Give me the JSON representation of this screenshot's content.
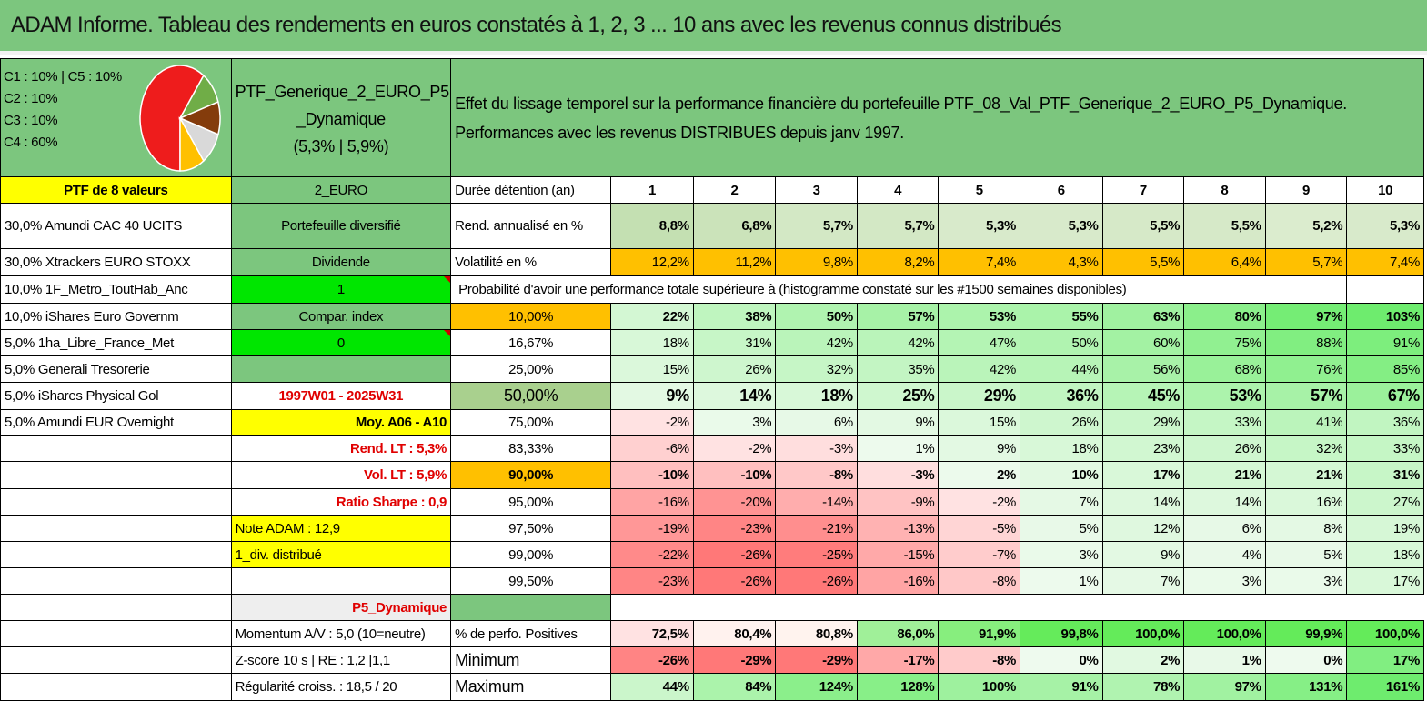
{
  "title": "ADAM Informe. Tableau des rendements en euros constatés à 1, 2, 3 ... 10 ans avec les revenus connus distribués",
  "pie": {
    "legend": [
      "C1 : 10% | C5 : 10%",
      "C2 : 10%",
      "C3 : 10%",
      "C4 : 60%"
    ],
    "slices": [
      {
        "value": 60,
        "color": "#ee1c1c"
      },
      {
        "value": 10,
        "color": "#70ad47"
      },
      {
        "value": 10,
        "color": "#843c0c"
      },
      {
        "value": 10,
        "color": "#d9d9d9"
      },
      {
        "value": 10,
        "color": "#ffc000"
      }
    ]
  },
  "portfolio": {
    "name_line1": "PTF_Generique_2_EURO_P5",
    "name_line2": "_Dynamique",
    "name_line3": "(5,3% | 5,9%)"
  },
  "description": {
    "line1": "Effet du lissage temporel sur la performance financière du portefeuille PTF_08_Val_PTF_Generique_2_EURO_P5_Dynamique.",
    "line2": "Performances avec les revenus DISTRIBUES depuis janv 1997."
  },
  "ptf_label": "PTF de 8 valeurs",
  "currency": "2_EURO",
  "holdings": [
    "30,0% Amundi CAC 40 UCITS",
    "30,0% Xtrackers EURO STOXX",
    "10,0% 1F_Metro_ToutHab_Anc",
    "10,0% iShares Euro Governm",
    "5,0% 1ha_Libre_France_Met",
    "5,0% Generali Tresorerie",
    "5,0% iShares Physical Gol",
    "5,0% Amundi EUR Overnight"
  ],
  "col2": {
    "diversified": "Portefeuille diversifié",
    "dividend": "Dividende",
    "dividend_value": "1",
    "compar_index": "Compar. index",
    "compar_value": "0",
    "period": "1997W01 - 2025W31",
    "moy": "Moy. A06 - A10",
    "rend_lt": "Rend. LT : 5,3%",
    "vol_lt": "Vol. LT : 5,9%",
    "sharpe": "Ratio Sharpe : 0,9",
    "note": "Note ADAM : 12,9",
    "div_distrib": "1_div. distribué",
    "profile": "P5_Dynamique",
    "momentum": "Momentum A/V : 5,0 (10=neutre)",
    "zscore": "Z-score 10 s | RE : 1,2 |1,1",
    "regularite": "Régularité croiss. : 18,5 / 20"
  },
  "labels": {
    "duree": "Durée détention (an)",
    "rend": "Rend. annualisé en %",
    "vol": "Volatilité en %",
    "proba": "Probabilité d'avoir une performance totale supérieure à (histogramme constaté sur les #1500 semaines disponibles)",
    "positives": "% de perfo. Positives",
    "minimum": "Minimum",
    "maximum": "Maximum"
  },
  "years": [
    "1",
    "2",
    "3",
    "4",
    "5",
    "6",
    "7",
    "8",
    "9",
    "10"
  ],
  "rend": [
    "8,8%",
    "6,8%",
    "5,7%",
    "5,7%",
    "5,3%",
    "5,3%",
    "5,5%",
    "5,5%",
    "5,2%",
    "5,3%"
  ],
  "vol": [
    "12,2%",
    "11,2%",
    "9,8%",
    "8,2%",
    "7,4%",
    "4,3%",
    "5,5%",
    "6,4%",
    "5,7%",
    "7,4%"
  ],
  "prob_rows": [
    {
      "threshold": "10,00%",
      "values": [
        "22%",
        "38%",
        "50%",
        "57%",
        "53%",
        "55%",
        "63%",
        "80%",
        "97%",
        "103%"
      ]
    },
    {
      "threshold": "16,67%",
      "values": [
        "18%",
        "31%",
        "42%",
        "42%",
        "47%",
        "50%",
        "60%",
        "75%",
        "88%",
        "91%"
      ]
    },
    {
      "threshold": "25,00%",
      "values": [
        "15%",
        "26%",
        "32%",
        "35%",
        "42%",
        "44%",
        "56%",
        "68%",
        "76%",
        "85%"
      ]
    },
    {
      "threshold": "50,00%",
      "values": [
        "9%",
        "14%",
        "18%",
        "25%",
        "29%",
        "36%",
        "45%",
        "53%",
        "57%",
        "67%"
      ]
    },
    {
      "threshold": "75,00%",
      "values": [
        "-2%",
        "3%",
        "6%",
        "9%",
        "15%",
        "26%",
        "29%",
        "33%",
        "41%",
        "36%"
      ]
    },
    {
      "threshold": "83,33%",
      "values": [
        "-6%",
        "-2%",
        "-3%",
        "1%",
        "9%",
        "18%",
        "23%",
        "26%",
        "32%",
        "33%"
      ]
    },
    {
      "threshold": "90,00%",
      "values": [
        "-10%",
        "-10%",
        "-8%",
        "-3%",
        "2%",
        "10%",
        "17%",
        "21%",
        "21%",
        "31%"
      ]
    },
    {
      "threshold": "95,00%",
      "values": [
        "-16%",
        "-20%",
        "-14%",
        "-9%",
        "-2%",
        "7%",
        "14%",
        "14%",
        "16%",
        "27%"
      ]
    },
    {
      "threshold": "97,50%",
      "values": [
        "-19%",
        "-23%",
        "-21%",
        "-13%",
        "-5%",
        "5%",
        "12%",
        "6%",
        "8%",
        "19%"
      ]
    },
    {
      "threshold": "99,00%",
      "values": [
        "-22%",
        "-26%",
        "-25%",
        "-15%",
        "-7%",
        "3%",
        "9%",
        "4%",
        "5%",
        "18%"
      ]
    },
    {
      "threshold": "99,50%",
      "values": [
        "-23%",
        "-26%",
        "-26%",
        "-16%",
        "-8%",
        "1%",
        "7%",
        "3%",
        "3%",
        "17%"
      ]
    }
  ],
  "positives": [
    "72,5%",
    "80,4%",
    "80,8%",
    "86,0%",
    "91,9%",
    "99,8%",
    "100,0%",
    "100,0%",
    "99,9%",
    "100,0%"
  ],
  "minimum": [
    "-26%",
    "-29%",
    "-29%",
    "-17%",
    "-8%",
    "0%",
    "2%",
    "1%",
    "0%",
    "17%"
  ],
  "maximum": [
    "44%",
    "84%",
    "124%",
    "128%",
    "100%",
    "91%",
    "78%",
    "97%",
    "131%",
    "161%"
  ]
}
